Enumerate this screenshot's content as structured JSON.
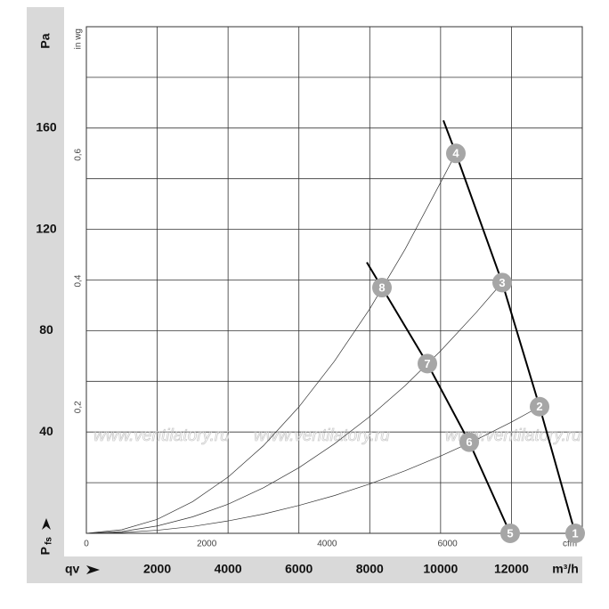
{
  "chart_data": {
    "type": "line",
    "y_label": "Pa",
    "y_symbol": "P",
    "y_symbol_sub": "fs",
    "x_symbol": "qv",
    "x_unit": "m³/h",
    "xlim": [
      0,
      14000
    ],
    "xticks": [
      2000,
      4000,
      6000,
      8000,
      10000,
      12000
    ],
    "ylim": [
      0,
      200
    ],
    "yticks": [
      40,
      80,
      120,
      160
    ],
    "ygrid": [
      20,
      60,
      100,
      140,
      180
    ],
    "x2_unit": "cfm",
    "x2lim": [
      0,
      8240
    ],
    "x2ticks": [
      0,
      2000,
      4000,
      6000
    ],
    "y2_unit": "in wg",
    "y2lim": [
      0,
      0.803
    ],
    "y2ticks": [
      {
        "value": 0.2,
        "label": "0,2"
      },
      {
        "value": 0.4,
        "label": "0,4"
      },
      {
        "value": 0.6,
        "label": "0,6"
      }
    ],
    "watermark": "www.ventilatory.ru",
    "series": [
      {
        "color": "#000000",
        "line_width": 2,
        "x": [
          10079,
          10431,
          11738,
          12794,
          13799
        ],
        "values": [
          163,
          150,
          99,
          50,
          0
        ]
      },
      {
        "color": "#000000",
        "line_width": 2,
        "x": [
          7917,
          8345,
          9627,
          10808,
          11964
        ],
        "values": [
          107,
          97,
          67,
          36,
          0
        ]
      },
      {
        "color": "#333333",
        "line_width": 0.7,
        "x": [
          0,
          1000,
          2000,
          3000,
          4000,
          5000,
          6000,
          7000,
          8000,
          9000,
          10000,
          10431
        ],
        "values": [
          0,
          1.4,
          5.5,
          12.5,
          22.2,
          34.6,
          49.9,
          67.9,
          88.6,
          112.2,
          138.5,
          150
        ]
      },
      {
        "color": "#333333",
        "line_width": 0.7,
        "x": [
          0,
          1000,
          2000,
          3000,
          4000,
          5000,
          6000,
          7000,
          8000,
          9000,
          10000,
          11000,
          11738
        ],
        "values": [
          0,
          0.7,
          2.9,
          6.5,
          11.5,
          18,
          25.9,
          35.3,
          46.1,
          58.3,
          72,
          87.1,
          99
        ]
      },
      {
        "color": "#333333",
        "line_width": 0.7,
        "x": [
          0,
          1000,
          2000,
          3000,
          4000,
          5000,
          6000,
          7000,
          8000,
          9000,
          10000,
          11000,
          12000,
          12794
        ],
        "values": [
          0,
          0.3,
          1.2,
          2.7,
          4.9,
          7.6,
          11,
          14.9,
          19.5,
          24.7,
          30.5,
          36.9,
          43.9,
          50
        ]
      }
    ],
    "points": [
      {
        "label": "1",
        "x": 13799,
        "y": 0
      },
      {
        "label": "2",
        "x": 12794,
        "y": 50
      },
      {
        "label": "3",
        "x": 11738,
        "y": 99
      },
      {
        "label": "4",
        "x": 10431,
        "y": 150
      },
      {
        "label": "5",
        "x": 11964,
        "y": 0
      },
      {
        "label": "6",
        "x": 10808,
        "y": 36
      },
      {
        "label": "7",
        "x": 9627,
        "y": 67
      },
      {
        "label": "8",
        "x": 8345,
        "y": 97
      }
    ]
  }
}
